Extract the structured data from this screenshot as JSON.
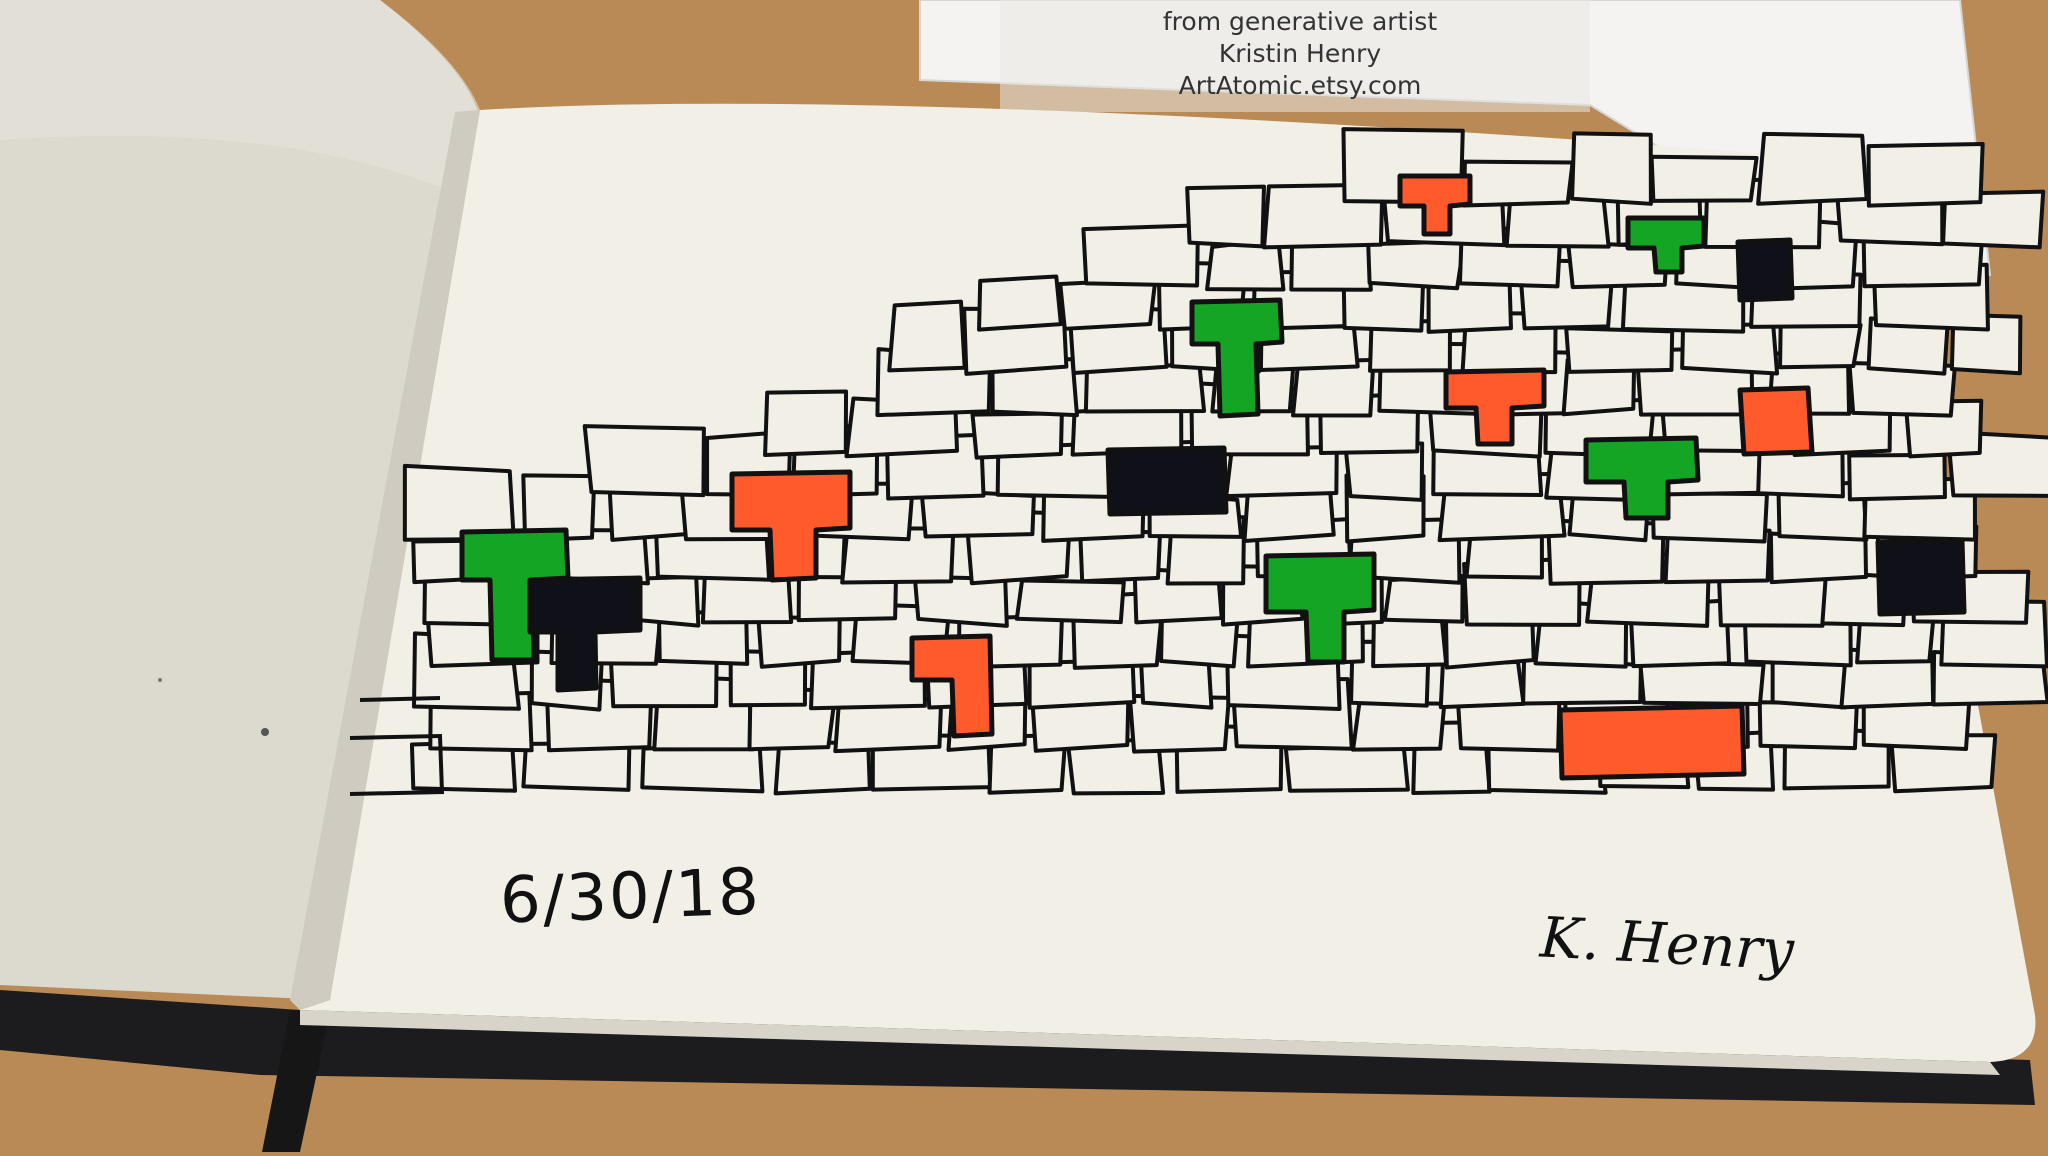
{
  "card": {
    "line1": "from generative artist",
    "line2": "Kristin Henry",
    "line3": "ArtAtomic.etsy.com"
  },
  "sketch": {
    "date": "6/30/18",
    "signature": "K. Henry"
  },
  "colors": {
    "table": "#b98a55",
    "paper": "#f2efe6",
    "ink": "#111111",
    "red": "#ff5a2c",
    "green": "#14a524",
    "black": "#101018"
  }
}
